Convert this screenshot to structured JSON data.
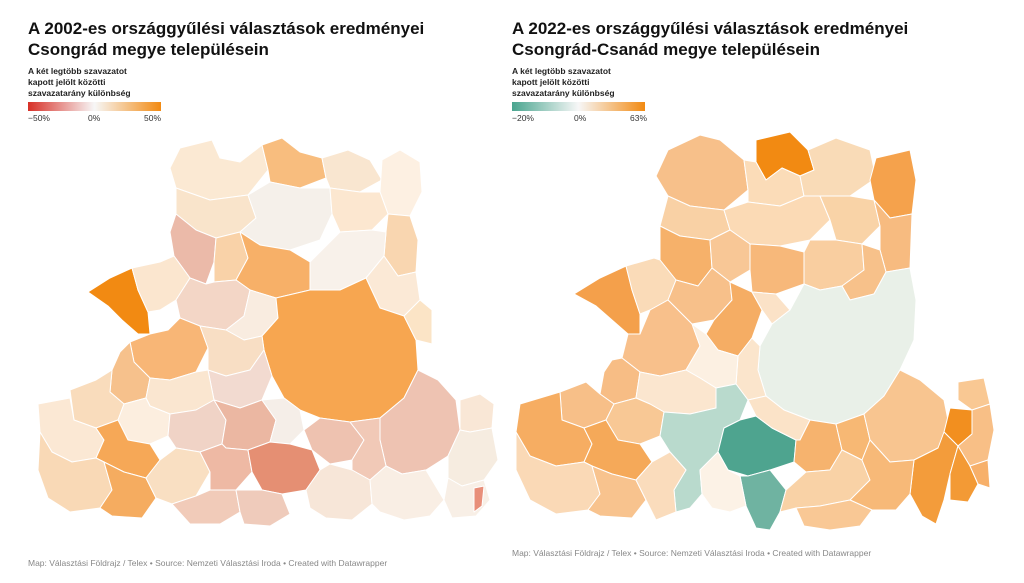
{
  "left": {
    "title": "A 2002-es országgyűlési választások eredményei Csongrád megye településein",
    "legend": {
      "title_lines": [
        "A két legtöbb szavazatot",
        "kapott jelölt közötti",
        "szavazatarány különbség"
      ],
      "min_label": "−50%",
      "mid_label": "0%",
      "max_label": "50%",
      "min_color": "#d73027",
      "mid_color": "#f7f7f7",
      "max_color": "#f28a12"
    },
    "footer": "Map: Választási Földrajz / Telex • Source: Nemzeti Választási Iroda • Created with Datawrapper"
  },
  "right": {
    "title": "A 2022-es országgyűlési választások eredményei Csongrád-Csanád megye településein",
    "legend": {
      "title_lines": [
        "A két legtöbb szavazatot",
        "kapott jelölt közötti",
        "szavazatarány különbség"
      ],
      "min_label": "−20%",
      "mid_label": "0%",
      "max_label": "63%",
      "min_color": "#4aa58f",
      "mid_color": "#f7f7f7",
      "max_color": "#f28a12"
    },
    "footer": "Map: Választási Földrajz / Telex • Source: Nemzeti Választási Iroda • Created with Datawrapper"
  }
}
